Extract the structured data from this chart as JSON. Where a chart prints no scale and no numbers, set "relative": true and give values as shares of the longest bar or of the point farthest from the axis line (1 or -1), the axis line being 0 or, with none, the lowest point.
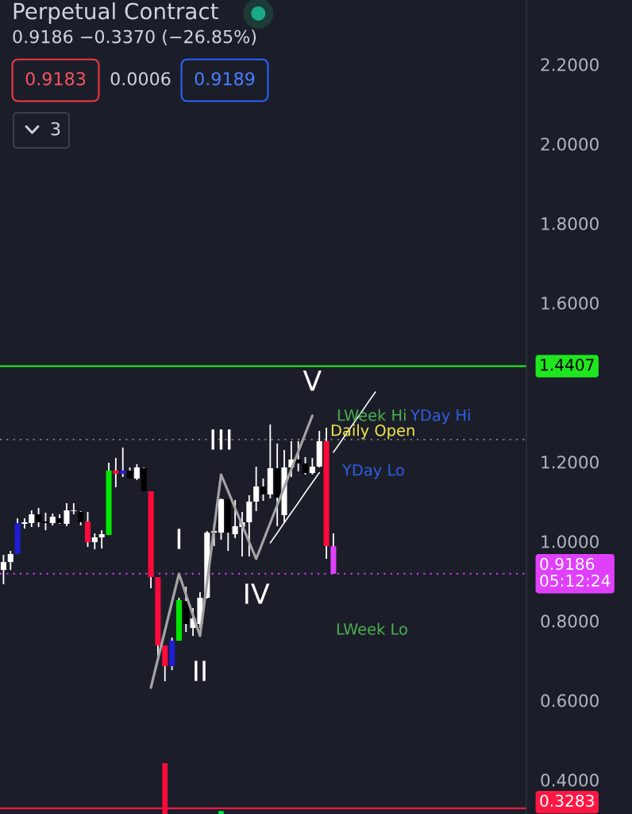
{
  "chart_data": [
    {
      "type": "candlestick",
      "title": "Perpetual Contract",
      "subtitle": "0.9186 −0.3370 (−26.85%)",
      "categories": [
        null,
        null,
        null,
        null,
        null,
        null,
        null,
        null,
        null,
        null,
        null,
        null,
        null,
        null,
        null,
        null,
        null,
        null,
        null,
        null,
        null,
        null,
        null,
        null,
        null,
        null,
        null,
        null,
        null,
        null,
        null,
        null,
        null,
        null,
        null,
        null,
        null,
        null,
        null,
        null,
        null,
        null,
        null,
        null,
        null,
        null,
        null,
        null,
        null,
        null,
        null,
        null,
        null,
        null,
        null,
        null,
        null,
        null,
        null,
        null,
        null,
        null,
        null,
        null,
        null,
        null,
        null,
        null,
        null,
        null,
        null,
        null,
        null,
        null,
        null
      ],
      "ohlc": [
        [
          0.928,
          0.966,
          0.892,
          0.948
        ],
        [
          0.948,
          0.976,
          0.928,
          0.968
        ],
        [
          0.968,
          1.058,
          0.968,
          1.046
        ],
        [
          1.044,
          1.058,
          1.032,
          1.048
        ],
        [
          1.046,
          1.078,
          1.036,
          1.068
        ],
        [
          1.068,
          1.084,
          1.036,
          1.048
        ],
        [
          1.05,
          1.072,
          1.028,
          1.046
        ],
        [
          1.046,
          1.07,
          1.04,
          1.062
        ],
        [
          1.058,
          1.068,
          1.044,
          1.046
        ],
        [
          1.044,
          1.096,
          1.038,
          1.078
        ],
        [
          1.076,
          1.096,
          1.068,
          1.078
        ],
        [
          1.074,
          1.076,
          1.04,
          1.048
        ],
        [
          1.05,
          1.074,
          0.986,
          0.998
        ],
        [
          0.998,
          1.02,
          0.98,
          1.01
        ],
        [
          1.01,
          1.028,
          0.982,
          1.018
        ],
        [
          1.016,
          1.198,
          1.016,
          1.178
        ],
        [
          1.178,
          1.21,
          1.136,
          1.17
        ],
        [
          1.17,
          1.236,
          1.162,
          1.178
        ],
        [
          1.178,
          1.186,
          1.158,
          1.158
        ],
        [
          1.158,
          1.194,
          1.154,
          1.186
        ],
        [
          1.184,
          1.186,
          1.126,
          1.126
        ],
        [
          1.126,
          1.126,
          0.882,
          0.91
        ],
        [
          0.91,
          0.91,
          0.708,
          0.738
        ],
        [
          0.738,
          0.738,
          0.648,
          0.686
        ],
        [
          0.686,
          0.758,
          0.676,
          0.75
        ],
        [
          0.75,
          0.858,
          0.75,
          0.852
        ],
        [
          0.85,
          0.886,
          0.772,
          0.792
        ],
        [
          0.782,
          0.832,
          0.762,
          0.806
        ],
        [
          0.792,
          0.872,
          0.782,
          0.858
        ],
        [
          0.858,
          1.026,
          0.856,
          1.022
        ],
        [
          1.022,
          1.042,
          0.988,
          1.026
        ],
        [
          1.022,
          1.108,
          1.004,
          1.106
        ],
        [
          1.106,
          1.106,
          0.976,
          1.022
        ],
        [
          1.018,
          1.104,
          1.008,
          1.038
        ],
        [
          1.036,
          1.074,
          0.962,
          1.048
        ],
        [
          1.048,
          1.116,
          0.962,
          1.1
        ],
        [
          1.1,
          1.188,
          1.076,
          1.138
        ],
        [
          1.138,
          1.158,
          1.102,
          1.118
        ],
        [
          1.118,
          1.294,
          1.108,
          1.184
        ],
        [
          1.184,
          1.246,
          1.038,
          1.11
        ],
        [
          1.066,
          1.23,
          1.046,
          1.186
        ],
        [
          1.186,
          1.252,
          1.162,
          1.206
        ],
        [
          1.206,
          1.252,
          1.176,
          1.196
        ],
        [
          1.196,
          1.212,
          1.168,
          1.172
        ],
        [
          1.172,
          1.21,
          1.168,
          1.188
        ],
        [
          1.188,
          1.278,
          1.186,
          1.252
        ],
        [
          1.252,
          1.286,
          0.956,
          0.988
        ],
        [
          0.988,
          1.02,
          0.9186,
          0.9186
        ],
        null,
        null,
        null,
        null,
        null,
        null,
        null,
        null,
        null,
        null,
        null,
        null,
        null,
        null,
        null,
        null,
        null,
        null,
        null,
        null,
        null,
        null,
        null,
        null,
        null,
        null,
        null
      ],
      "colors": [
        "#ffffff",
        "#ffffff",
        "#1e1ed2",
        "#ffffff",
        "#ffffff",
        "#000000",
        "#000000",
        "#ffffff",
        "#000000",
        "#ffffff",
        "#ffffff",
        "#000000",
        "#ff0a3a",
        "#ffffff",
        "#ffffff",
        "#00e600",
        "#ff0a3a",
        "#1e1ed2",
        "#000000",
        "#ffffff",
        "#000000",
        "#ff0a3a",
        "#ff0a3a",
        "#ff0a3a",
        "#1e1ed2",
        "#00e600",
        "#000000",
        "#ffffff",
        "#ffffff",
        "#ffffff",
        "#ffffff",
        "#ffffff",
        "#000000",
        "#ffffff",
        "#ffffff",
        "#ffffff",
        "#ffffff",
        "#000000",
        "#ffffff",
        "#000000",
        "#ffffff",
        "#ffffff",
        "#000000",
        "#000000",
        "#ffffff",
        "#ffffff",
        "#ff0a3a",
        "#e040fb",
        null,
        null,
        null,
        null,
        null,
        null,
        null,
        null,
        null,
        null,
        null,
        null,
        null,
        null,
        null,
        null,
        null,
        null,
        null,
        null,
        null,
        null,
        null,
        null,
        null,
        null,
        null
      ],
      "color": "#ffffff",
      "series": [
        {
          "type": "line",
          "color": "#a3a3a3",
          "values": [
            null,
            null,
            null,
            null,
            null,
            null,
            null,
            null,
            null,
            null,
            null,
            null,
            null,
            null,
            null,
            null,
            null,
            null,
            null,
            null,
            null,
            0.632,
            0.704,
            0.775,
            0.847,
            0.918,
            0.866,
            0.814,
            0.762,
            0.897,
            1.033,
            1.168,
            1.126,
            1.083,
            1.041,
            0.998,
            0.956,
            1.001,
            1.046,
            1.091,
            1.136,
            1.181,
            1.226,
            1.271,
            1.316,
            null,
            null,
            null,
            null,
            null,
            null,
            null,
            null,
            null,
            null,
            null,
            null,
            null,
            null,
            null,
            null,
            null,
            null,
            null,
            null,
            null,
            null,
            null,
            null,
            null,
            null,
            null,
            null,
            null,
            null
          ],
          "value_labels": [
            null,
            null,
            null,
            null,
            null,
            null,
            null,
            null,
            null,
            null,
            null,
            null,
            null,
            null,
            null,
            null,
            null,
            null,
            null,
            null,
            null,
            null,
            null,
            null,
            null,
            "I",
            null,
            null,
            "II",
            null,
            null,
            "III",
            null,
            null,
            null,
            null,
            "IV",
            null,
            null,
            null,
            null,
            null,
            null,
            null,
            "V",
            null,
            null,
            null,
            null,
            null,
            null,
            null,
            null,
            null,
            null,
            null,
            null,
            null,
            null,
            null,
            null,
            null,
            null,
            null,
            null,
            null,
            null,
            null,
            null,
            null,
            null,
            null,
            null,
            null,
            null
          ]
        },
        {
          "type": "line",
          "color": "#ffffff",
          "values": [
            null,
            null,
            null,
            null,
            null,
            null,
            null,
            null,
            null,
            null,
            null,
            null,
            null,
            null,
            null,
            null,
            null,
            null,
            null,
            null,
            null,
            null,
            null,
            null,
            null,
            null,
            null,
            null,
            null,
            null,
            null,
            null,
            null,
            null,
            null,
            null,
            null,
            null,
            0.996,
            1.021,
            1.047,
            1.072,
            1.097,
            1.123,
            1.148,
            1.173,
            null,
            1.224,
            1.249,
            1.275,
            1.3,
            1.325,
            1.351,
            1.376,
            null,
            null,
            null,
            null,
            null,
            null,
            null,
            null,
            null,
            null,
            null,
            null,
            null,
            null,
            null,
            null,
            null,
            null,
            null,
            null,
            null
          ]
        }
      ],
      "ylim": [
        0.314,
        2.362
      ],
      "yticks": [
        {
          "value": 0.4,
          "label": "0.4000"
        },
        {
          "value": 0.6,
          "label": "0.6000"
        },
        {
          "value": 0.8,
          "label": "0.8000"
        },
        {
          "value": 1.0,
          "label": "1.0000"
        },
        {
          "value": 1.2,
          "label": "1.2000"
        },
        {
          "value": 1.6,
          "label": "1.6000"
        },
        {
          "value": 1.8,
          "label": "1.8000"
        },
        {
          "value": 2.0,
          "label": "2.0000"
        },
        {
          "value": 2.2,
          "label": "2.2000"
        }
      ],
      "tick_labels": "y",
      "ref_lines": [
        {
          "axis": "y",
          "value": 1.4407,
          "label": "1.4407",
          "color": "#1fe61f",
          "line_style": "solid"
        },
        {
          "axis": "y",
          "value": 1.256,
          "color": "#787b86",
          "line_style": "dotted"
        },
        {
          "axis": "y",
          "value": 0.9186,
          "label": "0.9186\n05:12:24",
          "color": "#e040fb",
          "line_style": "dotted"
        },
        {
          "axis": "y",
          "value": 0.3283,
          "label": "0.3283",
          "color": "#ff1744",
          "line_style": "solid"
        }
      ],
      "annotations": [
        "0.9183",
        "0.0006",
        "0.9189",
        "3",
        "LWeek Hi",
        "YDay Hi",
        "Daily Open",
        "YDay Lo",
        "LWeek Lo"
      ]
    },
    {
      "type": "bar",
      "relative": true,
      "tick_labels": false,
      "categories": [
        null,
        null,
        null,
        null,
        null,
        null,
        null,
        null,
        null,
        null,
        null,
        null,
        null,
        null,
        null,
        null,
        null,
        null,
        null,
        null,
        null,
        null,
        null,
        null,
        null,
        null,
        null,
        null,
        null,
        null,
        null,
        null,
        null,
        null,
        null,
        null,
        null,
        null,
        null,
        null,
        null,
        null,
        null,
        null,
        null,
        null,
        null,
        null,
        null,
        null,
        null,
        null,
        null,
        null,
        null,
        null,
        null,
        null,
        null,
        null,
        null,
        null,
        null,
        null,
        null,
        null,
        null,
        null,
        null,
        null,
        null,
        null,
        null,
        null,
        null
      ],
      "values": [
        null,
        null,
        null,
        null,
        null,
        null,
        null,
        null,
        null,
        null,
        null,
        null,
        null,
        null,
        null,
        null,
        null,
        null,
        null,
        null,
        null,
        null,
        null,
        1,
        null,
        null,
        null,
        null,
        null,
        null,
        null,
        0.06,
        null,
        null,
        null,
        null,
        null,
        null,
        null,
        null,
        null,
        null,
        null,
        null,
        null,
        null,
        null,
        null,
        null,
        null,
        null,
        null,
        null,
        null,
        null,
        null,
        null,
        null,
        null,
        null,
        null,
        null,
        null,
        null,
        null,
        null,
        null,
        null,
        null,
        null,
        null,
        null,
        null,
        null,
        null
      ],
      "colors": [
        null,
        null,
        null,
        null,
        null,
        null,
        null,
        null,
        null,
        null,
        null,
        null,
        null,
        null,
        null,
        null,
        null,
        null,
        null,
        null,
        null,
        null,
        null,
        "#ff0a3a",
        null,
        null,
        null,
        null,
        null,
        null,
        null,
        "#00e640",
        null,
        null,
        null,
        null,
        null,
        null,
        null,
        null,
        null,
        null,
        null,
        null,
        null,
        null,
        null,
        null,
        null,
        null,
        null,
        null,
        null,
        null,
        null,
        null,
        null,
        null,
        null,
        null,
        null,
        null,
        null,
        null,
        null,
        null,
        null,
        null,
        null,
        null,
        null,
        null,
        null,
        null,
        null
      ]
    }
  ]
}
